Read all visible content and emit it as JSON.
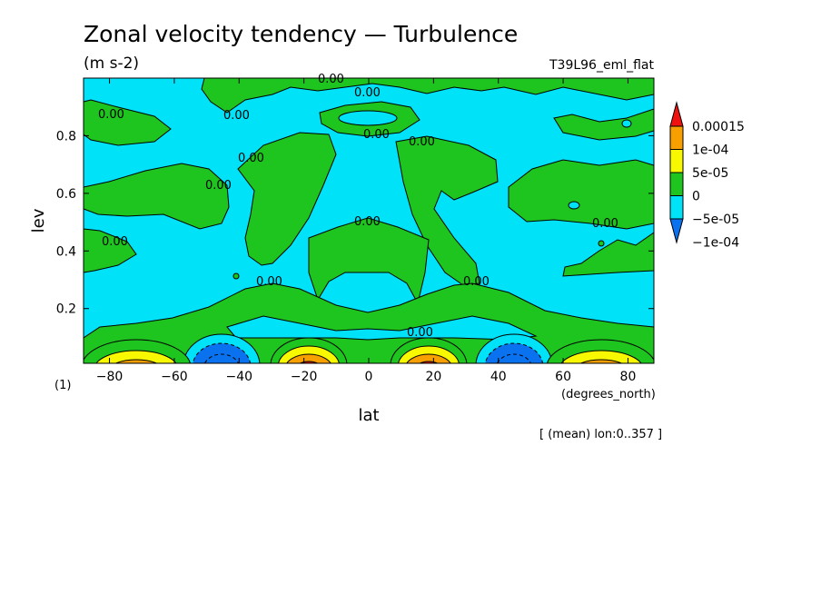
{
  "header": {
    "title": "Zonal velocity tendency — Turbulence",
    "units": "(m s-2)",
    "experiment": "T39L96_eml_flat",
    "footnote": "[ (mean) lon:0..357 ]",
    "figure_index": "(1)"
  },
  "chart_data": {
    "type": "heatmap",
    "title": "Zonal velocity tendency — Turbulence",
    "subtitle": "(m s-2)",
    "xlabel": "lat",
    "xunits": "(degrees_north)",
    "ylabel": "lev",
    "xlim": [
      -88,
      88
    ],
    "ylim": [
      1.0,
      0.01
    ],
    "x_ticks": [
      -80,
      -60,
      -40,
      -20,
      0,
      20,
      40,
      60,
      80
    ],
    "x_tick_labels": [
      "−80",
      "−60",
      "−40",
      "−20",
      "0",
      "20",
      "40",
      "60",
      "80"
    ],
    "y_ticks": [
      0.2,
      0.4,
      0.6,
      0.8
    ],
    "y_tick_labels": [
      "0.2",
      "0.4",
      "0.6",
      "0.8"
    ],
    "colorbar": {
      "levels": [
        "0.00015",
        "1e-04",
        "5e-05",
        "0",
        "−5e-05",
        "−1e-04"
      ],
      "colors": [
        "#0a72ee",
        "#00e2f8",
        "#1ec51e",
        "#f8f800",
        "#f8a000",
        "#f01010"
      ]
    },
    "contour_labels": [
      "0.00",
      "0.00",
      "0.00",
      "0.00",
      "0.00",
      "0.00",
      "0.00",
      "0.00",
      "0.00",
      "0.00",
      "0.00",
      "0.00",
      "0.00",
      "0.00"
    ],
    "background_color": "#00e2f8",
    "positive_color": "#1ec51e"
  }
}
